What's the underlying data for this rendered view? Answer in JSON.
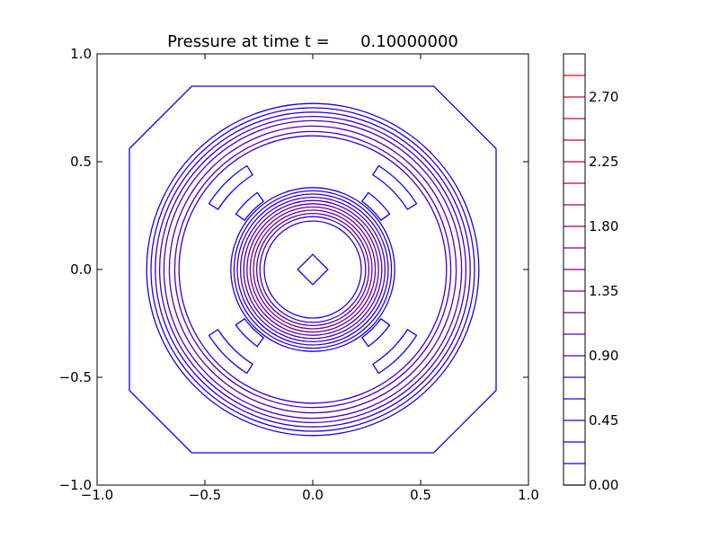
{
  "chart_data": [
    {
      "type": "contour",
      "title": "Pressure at time t =      0.10000000",
      "xlabel": "",
      "ylabel": "",
      "xlim": [
        -1.0,
        1.0
      ],
      "ylim": [
        -1.0,
        1.0
      ],
      "x_ticks": [
        "−1.0",
        "−0.5",
        "0.0",
        "0.5",
        "1.0"
      ],
      "y_ticks": [
        "1.0",
        "0.5",
        "0.0",
        "−0.5",
        "−1.0"
      ],
      "x_tick_values": [
        -1.0,
        -0.5,
        0.0,
        0.5,
        1.0
      ],
      "y_tick_values": [
        1.0,
        0.5,
        0.0,
        -0.5,
        -1.0
      ],
      "grid": false,
      "colormap": "blue-to-red",
      "low_color": "#0000ff",
      "high_color": "#ff0000",
      "contour_levels": [
        0.0,
        0.15,
        0.3,
        0.45,
        0.6,
        0.75,
        0.9,
        1.05,
        1.2,
        1.35,
        1.5,
        1.65,
        1.8,
        1.95,
        2.1,
        2.25,
        2.4,
        2.55,
        2.7,
        2.85
      ],
      "visible_contours": [
        {
          "shape": "octagon",
          "radius": 0.85,
          "level": 0.15
        },
        {
          "shape": "circle",
          "radius": 0.77,
          "level": 0.3
        },
        {
          "shape": "circle",
          "radius": 0.75,
          "level": 0.45
        },
        {
          "shape": "circle",
          "radius": 0.73,
          "level": 0.6
        },
        {
          "shape": "circle",
          "radius": 0.71,
          "level": 0.75
        },
        {
          "shape": "circle",
          "radius": 0.69,
          "level": 0.9
        },
        {
          "shape": "circle",
          "radius": 0.665,
          "level": 1.05
        },
        {
          "shape": "circle",
          "radius": 0.64,
          "level": 0.9
        },
        {
          "shape": "circle",
          "radius": 0.62,
          "level": 0.6
        },
        {
          "shape": "circle",
          "radius": 0.38,
          "level": 0.3
        },
        {
          "shape": "circle",
          "radius": 0.365,
          "level": 0.45
        },
        {
          "shape": "circle",
          "radius": 0.35,
          "level": 0.6
        },
        {
          "shape": "circle",
          "radius": 0.335,
          "level": 0.75
        },
        {
          "shape": "circle",
          "radius": 0.32,
          "level": 0.9
        },
        {
          "shape": "circle",
          "radius": 0.305,
          "level": 1.05
        },
        {
          "shape": "circle",
          "radius": 0.29,
          "level": 1.2
        },
        {
          "shape": "circle",
          "radius": 0.275,
          "level": 1.35
        },
        {
          "shape": "circle",
          "radius": 0.26,
          "level": 1.05
        },
        {
          "shape": "circle",
          "radius": 0.245,
          "level": 0.75
        },
        {
          "shape": "circle",
          "radius": 0.225,
          "level": 0.45
        },
        {
          "shape": "diamond",
          "radius": 0.07,
          "level": 0.3
        }
      ],
      "colorbar": {
        "tick_labels": [
          "2.70",
          "2.25",
          "1.80",
          "1.35",
          "0.90",
          "0.45",
          "0.00"
        ],
        "tick_values": [
          2.7,
          2.25,
          1.8,
          1.35,
          0.9,
          0.45,
          0.0
        ],
        "min": 0.0,
        "max": 3.0
      }
    }
  ]
}
